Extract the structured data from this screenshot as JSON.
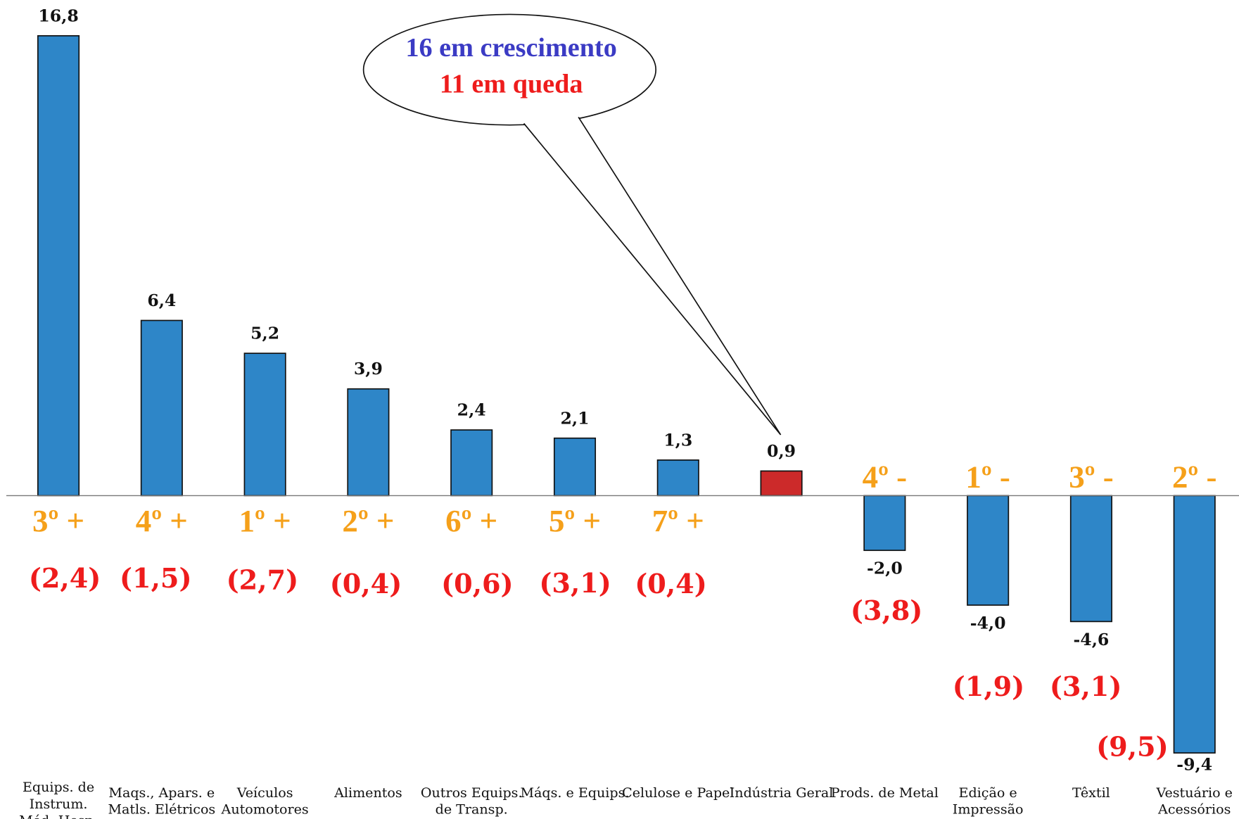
{
  "chart_data": {
    "type": "bar",
    "categories": [
      "Equips. de\nInstrum.\nMéd.-Hosp.",
      "Maqs., Apars. e\nMatls. Elétricos",
      "Veículos\nAutomotores",
      "Alimentos",
      "Outros Equips.\nde Transp.",
      "Máqs. e Equips.",
      "Celulose e Papel",
      "Indústria Geral",
      "Prods. de Metal",
      "Edição e\nImpressão",
      "Têxtil",
      "Vestuário e\nAcessórios"
    ],
    "values": [
      16.8,
      6.4,
      5.2,
      3.9,
      2.4,
      2.1,
      1.3,
      0.9,
      -2.0,
      -4.0,
      -4.6,
      -9.4
    ],
    "value_labels": [
      "16,8",
      "6,4",
      "5,2",
      "3,9",
      "2,4",
      "2,1",
      "1,3",
      "0,9",
      "-2,0",
      "-4,0",
      "-4,6",
      "-9,4"
    ],
    "colors": [
      "#2e86c8",
      "#2e86c8",
      "#2e86c8",
      "#2e86c8",
      "#2e86c8",
      "#2e86c8",
      "#2e86c8",
      "#cc2a2a",
      "#2e86c8",
      "#2e86c8",
      "#2e86c8",
      "#2e86c8"
    ],
    "rank_labels": [
      "3º +",
      "4º +",
      "1º +",
      "2º +",
      "6º +",
      "5º +",
      "7º +",
      null,
      "4º -",
      "1º -",
      "3º -",
      "2º -"
    ],
    "previous_labels": [
      "(2,4)",
      "(1,5)",
      "(2,7)",
      "(0,4)",
      "(0,6)",
      "(3,1)",
      "(0,4)",
      null,
      "(3,8)",
      "(1,9)",
      "(3,1)",
      "(9,5)"
    ],
    "annotations": [
      "16 em crescimento",
      "11 em queda"
    ],
    "ylim": [
      -10,
      17.5
    ]
  }
}
